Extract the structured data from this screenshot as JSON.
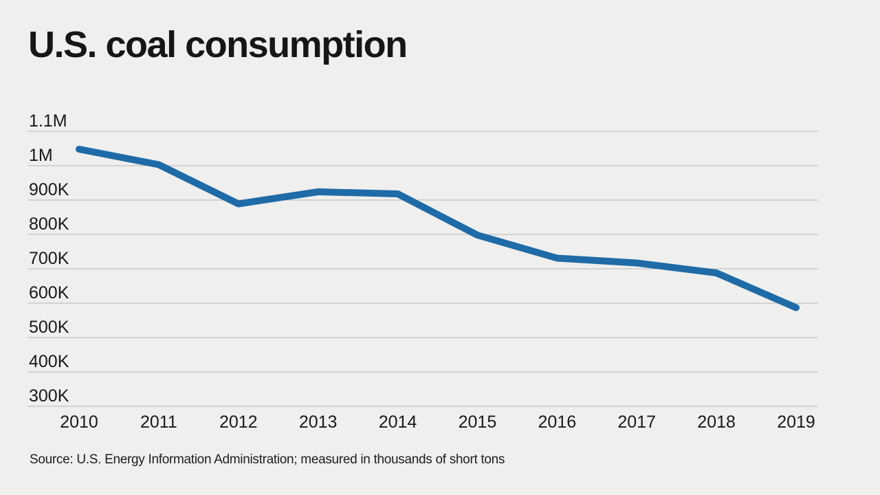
{
  "colors": {
    "background": "#efefee",
    "line": "#1e6ba7",
    "grid": "#c2c2c1",
    "text": "#191919"
  },
  "chart_data": {
    "type": "line",
    "title": "U.S. coal consumption",
    "categories": [
      "2010",
      "2011",
      "2012",
      "2013",
      "2014",
      "2015",
      "2016",
      "2017",
      "2018",
      "2019"
    ],
    "series": [
      {
        "name": "U.S. coal consumption",
        "values": [
          1048000,
          1003000,
          889000,
          924000,
          918000,
          798000,
          731000,
          717000,
          688000,
          587000
        ]
      }
    ],
    "units": "thousands of short tons",
    "y_ticks": [
      {
        "label": "1.1M",
        "value": 1100000
      },
      {
        "label": "1M",
        "value": 1000000
      },
      {
        "label": "900K",
        "value": 900000
      },
      {
        "label": "800K",
        "value": 800000
      },
      {
        "label": "700K",
        "value": 700000
      },
      {
        "label": "600K",
        "value": 600000
      },
      {
        "label": "500K",
        "value": 500000
      },
      {
        "label": "400K",
        "value": 400000
      },
      {
        "label": "300K",
        "value": 300000
      }
    ],
    "ylim": [
      300000,
      1100000
    ],
    "xlabel": "",
    "ylabel": "",
    "grid": true,
    "legend": false,
    "source_note": "Source: U.S. Energy Information Administration; measured in thousands of short tons"
  }
}
